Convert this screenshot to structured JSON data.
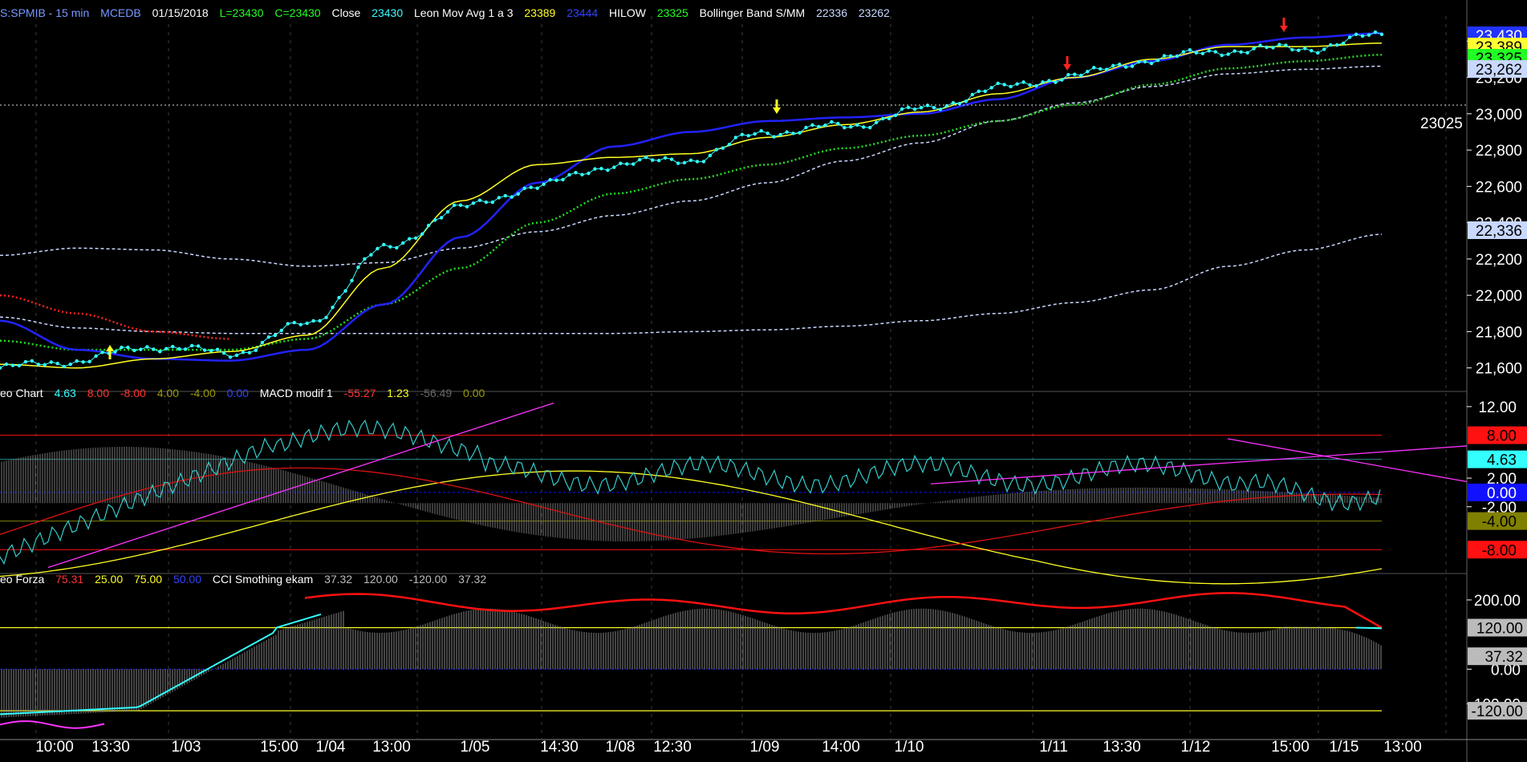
{
  "header_price": {
    "symbol": "S:SPMIB - 15 min",
    "source": "MCEDB",
    "date": "01/15/2018",
    "low": "L=23430",
    "close_eq": "C=23430",
    "close_label": "Close",
    "close_value": "23430",
    "mavg_label": "Leon Mov Avg 1 a 3",
    "mavg_v1": "23389",
    "mavg_v2": "23444",
    "hilow_label": "HILOW",
    "hilow_value": "23325",
    "boll_label": "Bollinger Band S/MM",
    "boll_v1": "22336",
    "boll_v2": "23262"
  },
  "header_macd": {
    "leo_label": "eo Chart",
    "v1": "4.63",
    "v2": "8.00",
    "v3": "-8.00",
    "v4": "4.00",
    "v5": "-4.00",
    "v6": "0.00",
    "macd_label": "MACD modif 1",
    "m1": "-55.27",
    "m2": "1.23",
    "m3": "-56.49",
    "m4": "0.00"
  },
  "header_cci": {
    "forza_label": "eo Forza",
    "f1": "75.31",
    "f2": "25.00",
    "f3": "75.00",
    "f4": "50.00",
    "cci_label": "CCI Smothing ekam",
    "c1": "37.32",
    "c2": "120.00",
    "c3": "-120.00",
    "c4": "37.32"
  },
  "price_axis": [
    "23,400",
    "23,200",
    "23,000",
    "22,800",
    "22,600",
    "22,400",
    "22,200",
    "22,000",
    "21,800",
    "21,600"
  ],
  "price_badges": [
    {
      "text": "23,430",
      "bg": "#2233ff",
      "fg": "#ffffff"
    },
    {
      "text": "23,389",
      "bg": "#ffff33",
      "fg": "#000000"
    },
    {
      "text": "23,325",
      "bg": "#22ff22",
      "fg": "#000000"
    },
    {
      "text": "23,262",
      "bg": "#c8d8ff",
      "fg": "#000000"
    },
    {
      "text": "22,336",
      "bg": "#c8d8ff",
      "fg": "#000000"
    }
  ],
  "level_label": "23025",
  "macd_axis": [
    "12.00",
    "2.00",
    "-2.00"
  ],
  "macd_badges": [
    {
      "text": "8.00",
      "bg": "#ff1111",
      "fg": "#000000"
    },
    {
      "text": "4.63",
      "bg": "#33ffff",
      "fg": "#000000"
    },
    {
      "text": "0.00",
      "bg": "#1111ff",
      "fg": "#ffffff"
    },
    {
      "text": "-4.00",
      "bg": "#808000",
      "fg": "#000000"
    },
    {
      "text": "-8.00",
      "bg": "#ff1111",
      "fg": "#000000"
    }
  ],
  "cci_axis": [
    "200.00",
    "0.00",
    "100.00"
  ],
  "cci_badges": [
    {
      "text": "120.00",
      "bg": "#bbbbbb",
      "fg": "#000000"
    },
    {
      "text": "37.32",
      "bg": "#bbbbbb",
      "fg": "#000000"
    },
    {
      "text": "-120.00",
      "bg": "#bbbbbb",
      "fg": "#000000"
    }
  ],
  "x_labels": [
    "10:00",
    "13:30",
    "1/03",
    "15:00",
    "1/04",
    "13:00",
    "1/05",
    "14:30",
    "1/08",
    "12:30",
    "1/09",
    "14:00",
    "1/10",
    "1/11",
    "13:30",
    "1/12",
    "15:00",
    "1/15",
    "13:00"
  ],
  "colors": {
    "close": "#33ffff",
    "mavg_fast": "#ffff22",
    "mavg_slow": "#2222ff",
    "hilow": "#22dd22",
    "bollinger": "#c8d8ff",
    "macd_red": "#ff1111",
    "trend": "#ff33ff",
    "cci_red": "#ff1111"
  },
  "chart_data": {
    "type": "line",
    "title": "S:SPMIB - 15 min",
    "x": [
      "10:00",
      "13:30",
      "1/03",
      "15:00",
      "1/04",
      "13:00",
      "1/05",
      "14:30",
      "1/08",
      "12:30",
      "1/09",
      "14:00",
      "1/10",
      "1/11",
      "13:30",
      "1/12",
      "15:00",
      "1/15",
      "13:00"
    ],
    "ylim": [
      21500,
      23450
    ],
    "series": [
      {
        "name": "Close",
        "values": [
          21600,
          21640,
          21720,
          21680,
          21840,
          22250,
          22480,
          22600,
          22720,
          22750,
          22900,
          22930,
          23020,
          23140,
          23210,
          23300,
          23350,
          23360,
          23430
        ]
      },
      {
        "name": "Leon Mov Avg 1 a 3",
        "values": [
          21620,
          21600,
          21650,
          21690,
          21780,
          22150,
          22520,
          22720,
          22760,
          22780,
          22870,
          22940,
          23010,
          23110,
          23200,
          23300,
          23370,
          23370,
          23389
        ]
      },
      {
        "name": "HILOW",
        "values": [
          21750,
          21700,
          21700,
          21700,
          21760,
          21950,
          22150,
          22400,
          22560,
          22640,
          22720,
          22810,
          22880,
          22960,
          23050,
          23160,
          23250,
          23290,
          23325
        ]
      }
    ]
  }
}
